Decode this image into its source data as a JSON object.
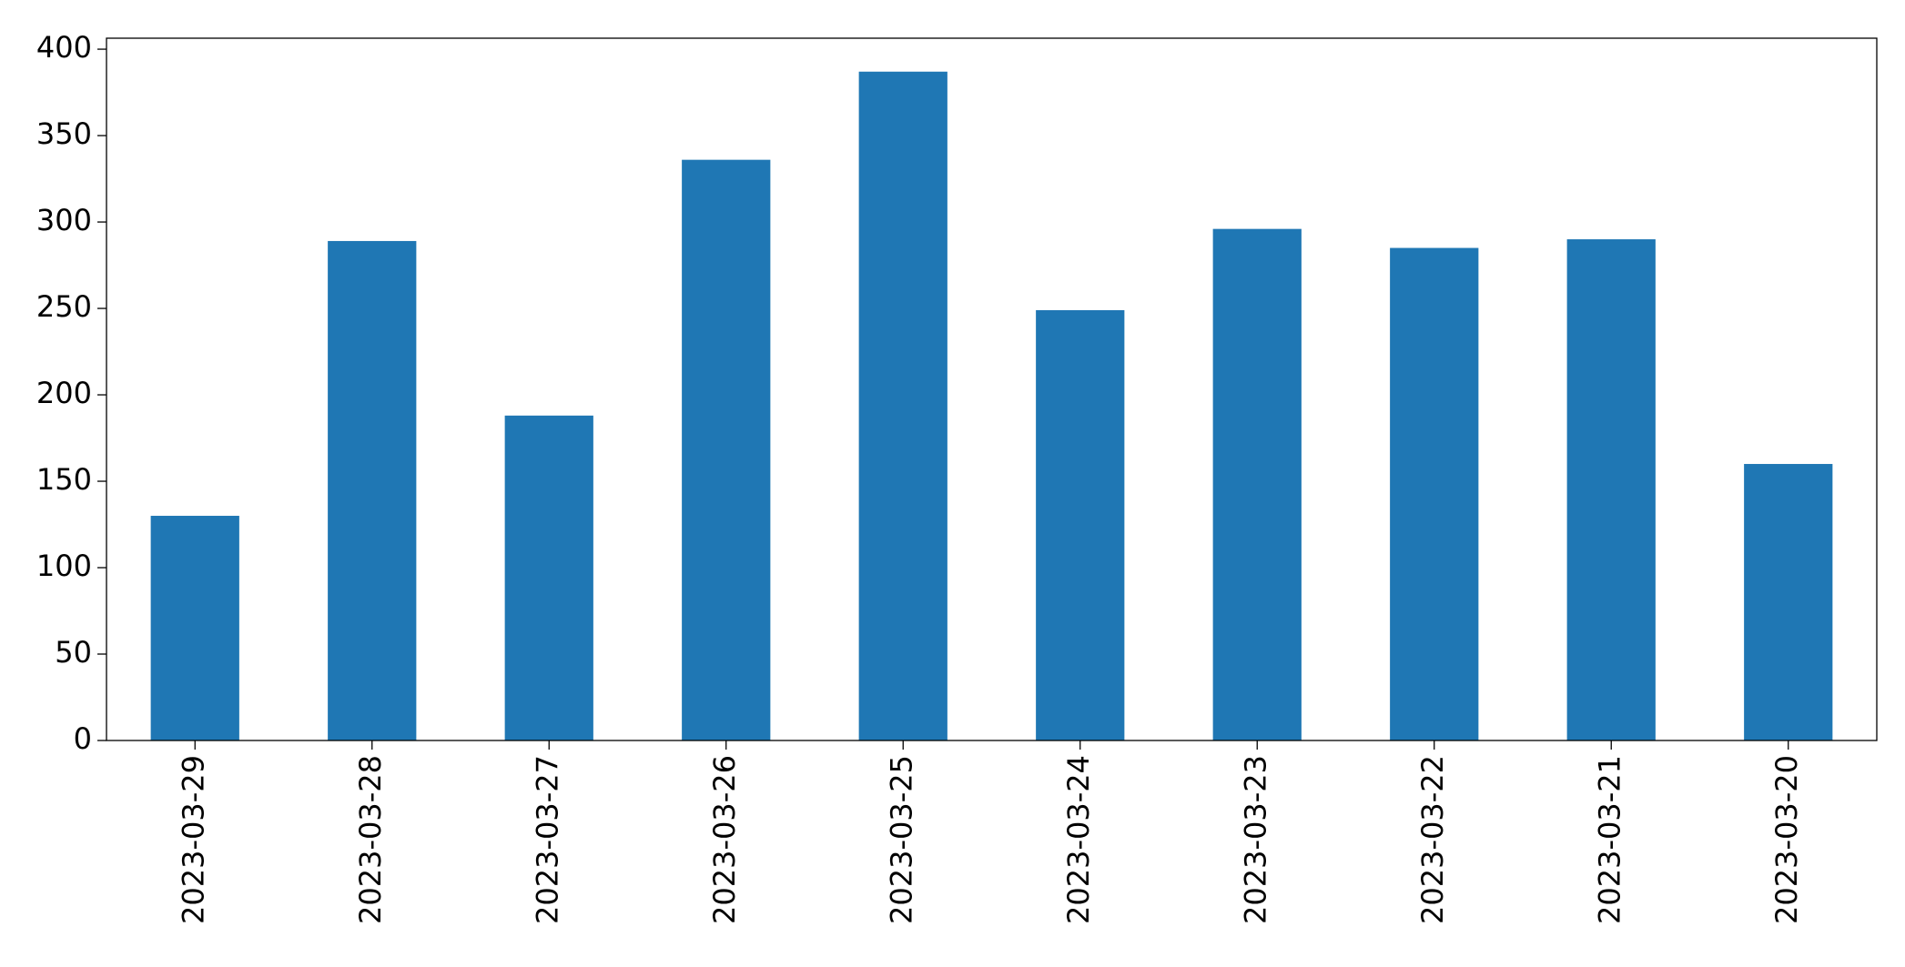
{
  "chart_data": {
    "type": "bar",
    "categories": [
      "2023-03-29",
      "2023-03-28",
      "2023-03-27",
      "2023-03-26",
      "2023-03-25",
      "2023-03-24",
      "2023-03-23",
      "2023-03-22",
      "2023-03-21",
      "2023-03-20"
    ],
    "values": [
      130,
      289,
      188,
      336,
      387,
      249,
      296,
      285,
      290,
      160
    ],
    "color": "#1f77b4",
    "ylim": [
      0,
      406.35
    ],
    "yticks": [
      0,
      50,
      100,
      150,
      200,
      250,
      300,
      350,
      400
    ],
    "grid": false
  }
}
